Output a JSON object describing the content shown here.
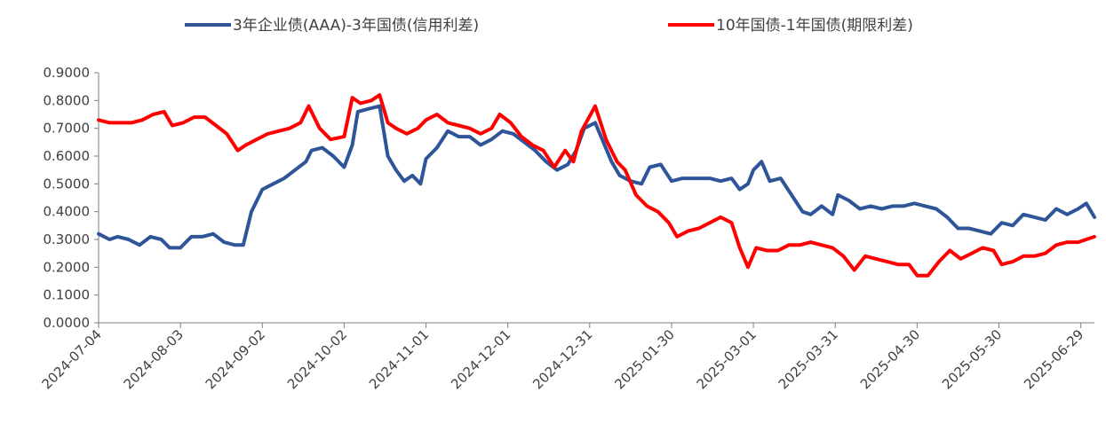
{
  "chart_data": {
    "type": "line",
    "legend_position": "top",
    "grid": false,
    "ylim": [
      0,
      0.9
    ],
    "y_ticks": [
      "0.0000",
      "0.1000",
      "0.2000",
      "0.3000",
      "0.4000",
      "0.5000",
      "0.6000",
      "0.7000",
      "0.8000",
      "0.9000"
    ],
    "x_range": [
      "2024-07-04",
      "2025-07-04"
    ],
    "x_ticks": [
      "2024-07-04",
      "2024-08-03",
      "2024-09-02",
      "2024-10-02",
      "2024-11-01",
      "2024-12-01",
      "2024-12-31",
      "2025-01-30",
      "2025-03-01",
      "2025-03-31",
      "2025-04-30",
      "2025-05-30",
      "2025-06-29"
    ],
    "series": [
      {
        "name": "3年企业债(AAA)-3年国债(信用利差)",
        "color": "#2E5597",
        "points": [
          [
            "2024-07-04",
            0.32
          ],
          [
            "2024-07-08",
            0.3
          ],
          [
            "2024-07-11",
            0.31
          ],
          [
            "2024-07-15",
            0.3
          ],
          [
            "2024-07-19",
            0.28
          ],
          [
            "2024-07-23",
            0.31
          ],
          [
            "2024-07-27",
            0.3
          ],
          [
            "2024-07-30",
            0.27
          ],
          [
            "2024-08-03",
            0.27
          ],
          [
            "2024-08-07",
            0.31
          ],
          [
            "2024-08-11",
            0.31
          ],
          [
            "2024-08-15",
            0.32
          ],
          [
            "2024-08-19",
            0.29
          ],
          [
            "2024-08-23",
            0.28
          ],
          [
            "2024-08-26",
            0.28
          ],
          [
            "2024-08-29",
            0.4
          ],
          [
            "2024-09-02",
            0.48
          ],
          [
            "2024-09-06",
            0.5
          ],
          [
            "2024-09-10",
            0.52
          ],
          [
            "2024-09-14",
            0.55
          ],
          [
            "2024-09-18",
            0.58
          ],
          [
            "2024-09-20",
            0.62
          ],
          [
            "2024-09-24",
            0.63
          ],
          [
            "2024-09-28",
            0.6
          ],
          [
            "2024-10-02",
            0.56
          ],
          [
            "2024-10-05",
            0.64
          ],
          [
            "2024-10-07",
            0.76
          ],
          [
            "2024-10-11",
            0.77
          ],
          [
            "2024-10-15",
            0.78
          ],
          [
            "2024-10-18",
            0.6
          ],
          [
            "2024-10-21",
            0.55
          ],
          [
            "2024-10-24",
            0.51
          ],
          [
            "2024-10-27",
            0.53
          ],
          [
            "2024-10-30",
            0.5
          ],
          [
            "2024-11-01",
            0.59
          ],
          [
            "2024-11-05",
            0.63
          ],
          [
            "2024-11-09",
            0.69
          ],
          [
            "2024-11-13",
            0.67
          ],
          [
            "2024-11-17",
            0.67
          ],
          [
            "2024-11-21",
            0.64
          ],
          [
            "2024-11-25",
            0.66
          ],
          [
            "2024-11-29",
            0.69
          ],
          [
            "2024-12-03",
            0.68
          ],
          [
            "2024-12-07",
            0.65
          ],
          [
            "2024-12-11",
            0.62
          ],
          [
            "2024-12-15",
            0.58
          ],
          [
            "2024-12-19",
            0.55
          ],
          [
            "2024-12-23",
            0.57
          ],
          [
            "2024-12-26",
            0.62
          ],
          [
            "2024-12-29",
            0.7
          ],
          [
            "2025-01-02",
            0.72
          ],
          [
            "2025-01-05",
            0.65
          ],
          [
            "2025-01-08",
            0.58
          ],
          [
            "2025-01-11",
            0.53
          ],
          [
            "2025-01-15",
            0.51
          ],
          [
            "2025-01-19",
            0.5
          ],
          [
            "2025-01-22",
            0.56
          ],
          [
            "2025-01-26",
            0.57
          ],
          [
            "2025-01-30",
            0.51
          ],
          [
            "2025-02-03",
            0.52
          ],
          [
            "2025-02-08",
            0.52
          ],
          [
            "2025-02-13",
            0.52
          ],
          [
            "2025-02-17",
            0.51
          ],
          [
            "2025-02-21",
            0.52
          ],
          [
            "2025-02-24",
            0.48
          ],
          [
            "2025-02-27",
            0.5
          ],
          [
            "2025-03-01",
            0.55
          ],
          [
            "2025-03-04",
            0.58
          ],
          [
            "2025-03-07",
            0.51
          ],
          [
            "2025-03-11",
            0.52
          ],
          [
            "2025-03-15",
            0.46
          ],
          [
            "2025-03-19",
            0.4
          ],
          [
            "2025-03-22",
            0.39
          ],
          [
            "2025-03-26",
            0.42
          ],
          [
            "2025-03-30",
            0.39
          ],
          [
            "2025-04-01",
            0.46
          ],
          [
            "2025-04-05",
            0.44
          ],
          [
            "2025-04-09",
            0.41
          ],
          [
            "2025-04-13",
            0.42
          ],
          [
            "2025-04-17",
            0.41
          ],
          [
            "2025-04-21",
            0.42
          ],
          [
            "2025-04-25",
            0.42
          ],
          [
            "2025-04-29",
            0.43
          ],
          [
            "2025-05-03",
            0.42
          ],
          [
            "2025-05-07",
            0.41
          ],
          [
            "2025-05-11",
            0.38
          ],
          [
            "2025-05-15",
            0.34
          ],
          [
            "2025-05-19",
            0.34
          ],
          [
            "2025-05-23",
            0.33
          ],
          [
            "2025-05-27",
            0.32
          ],
          [
            "2025-05-31",
            0.36
          ],
          [
            "2025-06-04",
            0.35
          ],
          [
            "2025-06-08",
            0.39
          ],
          [
            "2025-06-12",
            0.38
          ],
          [
            "2025-06-16",
            0.37
          ],
          [
            "2025-06-20",
            0.41
          ],
          [
            "2025-06-24",
            0.39
          ],
          [
            "2025-06-28",
            0.41
          ],
          [
            "2025-07-01",
            0.43
          ],
          [
            "2025-07-04",
            0.38
          ]
        ]
      },
      {
        "name": "10年国债-1年国债(期限利差)",
        "color": "#FF0000",
        "points": [
          [
            "2024-07-04",
            0.73
          ],
          [
            "2024-07-08",
            0.72
          ],
          [
            "2024-07-12",
            0.72
          ],
          [
            "2024-07-16",
            0.72
          ],
          [
            "2024-07-20",
            0.73
          ],
          [
            "2024-07-24",
            0.75
          ],
          [
            "2024-07-28",
            0.76
          ],
          [
            "2024-07-31",
            0.71
          ],
          [
            "2024-08-04",
            0.72
          ],
          [
            "2024-08-08",
            0.74
          ],
          [
            "2024-08-12",
            0.74
          ],
          [
            "2024-08-16",
            0.71
          ],
          [
            "2024-08-20",
            0.68
          ],
          [
            "2024-08-24",
            0.62
          ],
          [
            "2024-08-27",
            0.64
          ],
          [
            "2024-08-31",
            0.66
          ],
          [
            "2024-09-04",
            0.68
          ],
          [
            "2024-09-08",
            0.69
          ],
          [
            "2024-09-12",
            0.7
          ],
          [
            "2024-09-16",
            0.72
          ],
          [
            "2024-09-19",
            0.78
          ],
          [
            "2024-09-23",
            0.7
          ],
          [
            "2024-09-27",
            0.66
          ],
          [
            "2024-10-02",
            0.67
          ],
          [
            "2024-10-05",
            0.81
          ],
          [
            "2024-10-08",
            0.79
          ],
          [
            "2024-10-12",
            0.8
          ],
          [
            "2024-10-15",
            0.82
          ],
          [
            "2024-10-18",
            0.72
          ],
          [
            "2024-10-21",
            0.7
          ],
          [
            "2024-10-25",
            0.68
          ],
          [
            "2024-10-29",
            0.7
          ],
          [
            "2024-11-01",
            0.73
          ],
          [
            "2024-11-05",
            0.75
          ],
          [
            "2024-11-09",
            0.72
          ],
          [
            "2024-11-13",
            0.71
          ],
          [
            "2024-11-17",
            0.7
          ],
          [
            "2024-11-21",
            0.68
          ],
          [
            "2024-11-25",
            0.7
          ],
          [
            "2024-11-28",
            0.75
          ],
          [
            "2024-12-02",
            0.72
          ],
          [
            "2024-12-06",
            0.67
          ],
          [
            "2024-12-10",
            0.64
          ],
          [
            "2024-12-14",
            0.62
          ],
          [
            "2024-12-18",
            0.56
          ],
          [
            "2024-12-22",
            0.62
          ],
          [
            "2024-12-25",
            0.58
          ],
          [
            "2024-12-28",
            0.69
          ],
          [
            "2025-01-02",
            0.78
          ],
          [
            "2025-01-06",
            0.66
          ],
          [
            "2025-01-10",
            0.58
          ],
          [
            "2025-01-13",
            0.55
          ],
          [
            "2025-01-17",
            0.46
          ],
          [
            "2025-01-21",
            0.42
          ],
          [
            "2025-01-25",
            0.4
          ],
          [
            "2025-01-29",
            0.36
          ],
          [
            "2025-02-01",
            0.31
          ],
          [
            "2025-02-05",
            0.33
          ],
          [
            "2025-02-09",
            0.34
          ],
          [
            "2025-02-13",
            0.36
          ],
          [
            "2025-02-17",
            0.38
          ],
          [
            "2025-02-21",
            0.36
          ],
          [
            "2025-02-24",
            0.27
          ],
          [
            "2025-02-27",
            0.2
          ],
          [
            "2025-03-02",
            0.27
          ],
          [
            "2025-03-06",
            0.26
          ],
          [
            "2025-03-10",
            0.26
          ],
          [
            "2025-03-14",
            0.28
          ],
          [
            "2025-03-18",
            0.28
          ],
          [
            "2025-03-22",
            0.29
          ],
          [
            "2025-03-26",
            0.28
          ],
          [
            "2025-03-30",
            0.27
          ],
          [
            "2025-04-03",
            0.24
          ],
          [
            "2025-04-07",
            0.19
          ],
          [
            "2025-04-11",
            0.24
          ],
          [
            "2025-04-15",
            0.23
          ],
          [
            "2025-04-19",
            0.22
          ],
          [
            "2025-04-23",
            0.21
          ],
          [
            "2025-04-27",
            0.21
          ],
          [
            "2025-04-30",
            0.17
          ],
          [
            "2025-05-04",
            0.17
          ],
          [
            "2025-05-08",
            0.22
          ],
          [
            "2025-05-12",
            0.26
          ],
          [
            "2025-05-16",
            0.23
          ],
          [
            "2025-05-20",
            0.25
          ],
          [
            "2025-05-24",
            0.27
          ],
          [
            "2025-05-28",
            0.26
          ],
          [
            "2025-05-31",
            0.21
          ],
          [
            "2025-06-04",
            0.22
          ],
          [
            "2025-06-08",
            0.24
          ],
          [
            "2025-06-12",
            0.24
          ],
          [
            "2025-06-16",
            0.25
          ],
          [
            "2025-06-20",
            0.28
          ],
          [
            "2025-06-24",
            0.29
          ],
          [
            "2025-06-28",
            0.29
          ],
          [
            "2025-07-01",
            0.3
          ],
          [
            "2025-07-04",
            0.31
          ]
        ]
      }
    ]
  }
}
